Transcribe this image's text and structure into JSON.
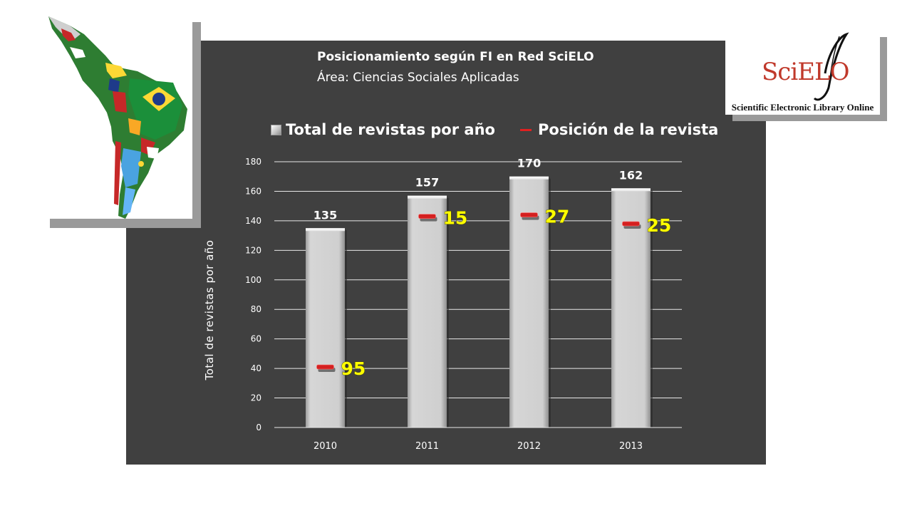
{
  "header": {
    "title_line_1": "Posicionamiento según FI en Red SciELO",
    "title_line_2": "Área:  Ciencias Sociales Aplicadas"
  },
  "logo": {
    "wordmark": "SciELO",
    "caption": "Scientific Electronic Library Online"
  },
  "map": {
    "description_icon": "latin-america-flags-map"
  },
  "colors": {
    "panel_background": "#404040",
    "bar_fill": "#c9c9c9",
    "position_marker": "#d42020",
    "position_label": "#ffff00",
    "text": "#ffffff"
  },
  "chart_data": {
    "type": "bar",
    "legend": [
      "Total de revistas por año",
      "Posición de la revista"
    ],
    "legend_placement": "top",
    "ylabel": "Total de revistas por año",
    "categories": [
      "2010",
      "2011",
      "2012",
      "2013"
    ],
    "ylim": [
      0,
      180
    ],
    "yticks": [
      0,
      20,
      40,
      60,
      80,
      100,
      120,
      140,
      160,
      180
    ],
    "grid": true,
    "series": [
      {
        "name": "Total de revistas por año",
        "type": "bar",
        "values": [
          135,
          157,
          170,
          162
        ]
      },
      {
        "name": "Posición de la revista",
        "type": "marker",
        "values": [
          41,
          143,
          144,
          138
        ],
        "labels": [
          "95",
          "15",
          "27",
          "25"
        ]
      }
    ]
  }
}
